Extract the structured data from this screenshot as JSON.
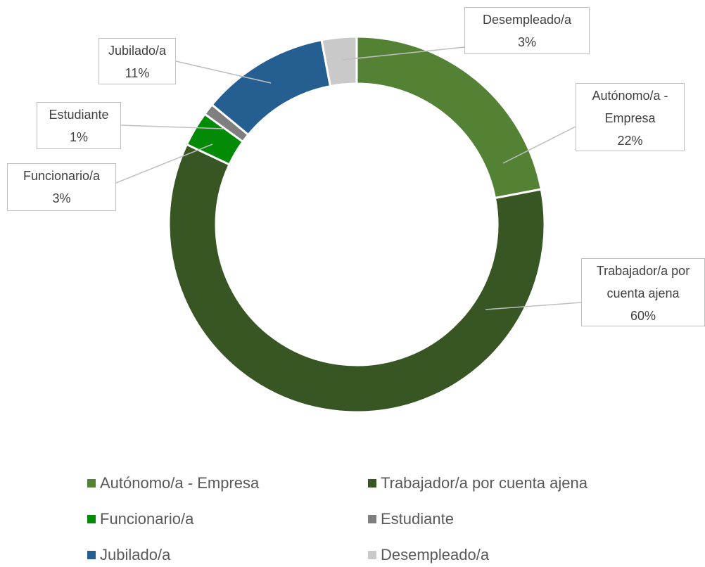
{
  "chart_data": {
    "type": "donut",
    "categories": [
      "Autónomo/a - Empresa",
      "Trabajador/a por cuenta ajena",
      "Funcionario/a",
      "Estudiante",
      "Jubilado/a",
      "Desempleado/a"
    ],
    "values": [
      22,
      60,
      3,
      1,
      11,
      3
    ],
    "value_labels": [
      "22%",
      "60%",
      "3%",
      "1%",
      "11%",
      "3%"
    ],
    "colors": [
      "#548235",
      "#375623",
      "#038a07",
      "#7f7f7f",
      "#255e91",
      "#c9c9c9"
    ],
    "legend": "bottom"
  }
}
